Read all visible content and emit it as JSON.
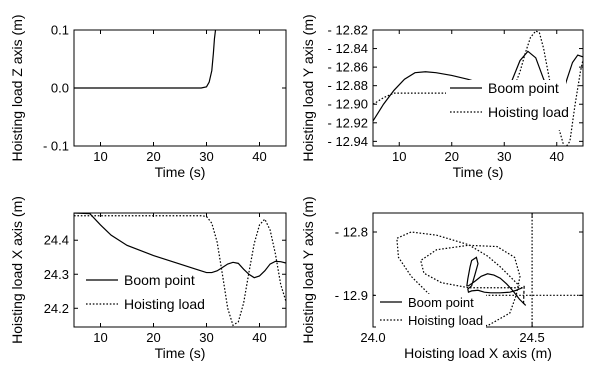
{
  "chart_data": [
    {
      "id": "z",
      "type": "line",
      "xlabel": "Time (s)",
      "ylabel": "Hoisting load Z axis (m)",
      "xlim": [
        5,
        45
      ],
      "ylim": [
        -0.1,
        0.1
      ],
      "xticks": [
        10,
        20,
        30,
        40
      ],
      "yticks": [
        -0.1,
        0.0,
        0.1
      ],
      "xtick_labels": [
        "10",
        "20",
        "30",
        "40"
      ],
      "ytick_labels": [
        "- 0.1",
        "0.0",
        "0.1"
      ],
      "legend": null,
      "series": [
        {
          "style": "solid",
          "x": [
            5,
            8,
            10,
            15,
            20,
            25,
            29,
            30,
            30.5,
            31,
            31.3,
            31.5,
            31.7
          ],
          "y": [
            0,
            0,
            0,
            0,
            0,
            0,
            0,
            0.002,
            0.01,
            0.03,
            0.06,
            0.085,
            0.1
          ]
        }
      ]
    },
    {
      "id": "y_time",
      "type": "line",
      "xlabel": "Time (s)",
      "ylabel": "Hoisting load Y axis (m)",
      "xlim": [
        5,
        45
      ],
      "ylim": [
        -12.945,
        -12.82
      ],
      "xticks": [
        10,
        20,
        30,
        40
      ],
      "yticks": [
        -12.82,
        -12.84,
        -12.86,
        -12.88,
        -12.9,
        -12.92,
        -12.94
      ],
      "xtick_labels": [
        "10",
        "20",
        "30",
        "40"
      ],
      "ytick_labels": [
        "- 12.82",
        "- 12.84",
        "- 12.86",
        "- 12.88",
        "- 12.90",
        "- 12.92",
        "- 12.94"
      ],
      "legend": {
        "position": "center-right"
      },
      "series": [
        {
          "name": "Boom point",
          "style": "solid",
          "x": [
            5,
            7,
            9,
            11,
            13,
            15,
            17,
            20,
            23,
            26,
            29,
            30,
            31.5,
            33,
            34.5,
            36,
            37.5,
            39,
            40,
            41,
            42,
            43,
            44,
            45
          ],
          "y": [
            -12.918,
            -12.9,
            -12.885,
            -12.873,
            -12.866,
            -12.865,
            -12.866,
            -12.869,
            -12.873,
            -12.878,
            -12.884,
            -12.885,
            -12.874,
            -12.853,
            -12.843,
            -12.85,
            -12.873,
            -12.892,
            -12.895,
            -12.89,
            -12.872,
            -12.855,
            -12.847,
            -12.849
          ]
        },
        {
          "name": "Hoisting load",
          "style": "dotted",
          "x": [
            5,
            7,
            9,
            10,
            15,
            20,
            25,
            30,
            31,
            32,
            33,
            34,
            35,
            36,
            36.7,
            37.5,
            38.5,
            39.5,
            40.5,
            41.5,
            42.5,
            43.5,
            44.5,
            45
          ],
          "y": [
            -12.9,
            -12.893,
            -12.888,
            -12.888,
            -12.888,
            -12.888,
            -12.888,
            -12.888,
            -12.887,
            -12.88,
            -12.865,
            -12.845,
            -12.828,
            -12.821,
            -12.823,
            -12.84,
            -12.87,
            -12.9,
            -12.928,
            -12.948,
            -12.94,
            -12.9,
            -12.865,
            -12.852
          ]
        }
      ]
    },
    {
      "id": "x_time",
      "type": "line",
      "xlabel": "Time (s)",
      "ylabel": "Hoisting load X axis (m)",
      "xlim": [
        5,
        45
      ],
      "ylim": [
        24.145,
        24.48
      ],
      "xticks": [
        10,
        20,
        30,
        40
      ],
      "yticks": [
        24.2,
        24.3,
        24.4
      ],
      "xtick_labels": [
        "10",
        "20",
        "30",
        "40"
      ],
      "ytick_labels": [
        "24.2",
        "24.3",
        "24.4"
      ],
      "legend": {
        "position": "bottom-left"
      },
      "series": [
        {
          "name": "Boom point",
          "style": "solid",
          "x": [
            5,
            8,
            10,
            12,
            15,
            20,
            25,
            28,
            30,
            31,
            32,
            33,
            34,
            35,
            36,
            37,
            38,
            39,
            40,
            41,
            42,
            43,
            44,
            45
          ],
          "y": [
            24.48,
            24.478,
            24.445,
            24.415,
            24.385,
            24.355,
            24.33,
            24.315,
            24.305,
            24.305,
            24.31,
            24.32,
            24.33,
            24.335,
            24.332,
            24.315,
            24.3,
            24.29,
            24.295,
            24.31,
            24.33,
            24.338,
            24.337,
            24.333
          ]
        },
        {
          "name": "Hoisting load",
          "style": "dotted",
          "x": [
            5,
            8,
            10,
            15,
            20,
            25,
            29,
            30,
            31,
            32,
            33,
            34,
            35,
            36,
            37,
            38,
            39,
            40,
            41,
            42,
            43,
            44,
            45
          ],
          "y": [
            24.472,
            24.472,
            24.472,
            24.472,
            24.472,
            24.472,
            24.472,
            24.47,
            24.45,
            24.395,
            24.3,
            24.2,
            24.15,
            24.16,
            24.215,
            24.305,
            24.39,
            24.445,
            24.462,
            24.43,
            24.36,
            24.27,
            24.22
          ]
        }
      ]
    },
    {
      "id": "xy",
      "type": "line",
      "xlabel": "Hoisting load X axis (m)",
      "ylabel": "Hoisting load Y axis (m)",
      "xlim": [
        24.0,
        24.66
      ],
      "ylim": [
        -12.95,
        -12.77
      ],
      "xticks": [
        24.0,
        24.5
      ],
      "yticks": [
        -12.8,
        -12.9
      ],
      "xtick_labels": [
        "24.0",
        "24.5"
      ],
      "ytick_labels": [
        "- 12.8",
        "- 12.9"
      ],
      "legend": {
        "position": "bottom-left"
      },
      "series": [
        {
          "name": "Boom point",
          "style": "solid",
          "x": [
            24.48,
            24.46,
            24.44,
            24.42,
            24.4,
            24.38,
            24.36,
            24.34,
            24.32,
            24.3,
            24.295,
            24.298,
            24.305,
            24.31,
            24.325,
            24.33,
            24.32,
            24.31,
            24.298,
            24.3,
            24.31,
            24.33,
            24.35,
            24.37,
            24.4,
            24.43,
            24.45,
            24.47
          ],
          "y": [
            -12.916,
            -12.906,
            -12.893,
            -12.882,
            -12.873,
            -12.868,
            -12.866,
            -12.87,
            -12.878,
            -12.885,
            -12.885,
            -12.874,
            -12.855,
            -12.845,
            -12.84,
            -12.85,
            -12.868,
            -12.885,
            -12.89,
            -12.895,
            -12.893,
            -12.892,
            -12.895,
            -12.896,
            -12.896,
            -12.895,
            -12.892,
            -12.888
          ]
        },
        {
          "name": "Hoisting load",
          "style": "dotted",
          "x": [
            24.47,
            24.45,
            24.4,
            24.35,
            24.3,
            24.215,
            24.16,
            24.15,
            24.2,
            24.3,
            24.39,
            24.445,
            24.462,
            24.45,
            24.43,
            24.36,
            24.27,
            24.2,
            24.12,
            24.08,
            24.075,
            24.12,
            24.2,
            24.3,
            24.36,
            24.4,
            24.43,
            24.45,
            24.46
          ],
          "y": [
            -12.888,
            -12.888,
            -12.888,
            -12.888,
            -12.888,
            -12.88,
            -12.865,
            -12.845,
            -12.828,
            -12.821,
            -12.823,
            -12.84,
            -12.87,
            -12.9,
            -12.928,
            -12.948,
            -12.94,
            -12.91,
            -12.87,
            -12.84,
            -12.81,
            -12.8,
            -12.805,
            -12.82,
            -12.838,
            -12.855,
            -12.87,
            -12.88,
            -12.885
          ]
        },
        {
          "name": "",
          "style": "dashed",
          "x": [
            24.475,
            24.474,
            24.473,
            24.474,
            24.475
          ],
          "y": [
            -12.885,
            -12.9,
            -12.915,
            -12.9,
            -12.886
          ]
        }
      ],
      "reference_lines": {
        "vertical_x": 24.5,
        "horizontal_y": -12.9
      }
    }
  ]
}
